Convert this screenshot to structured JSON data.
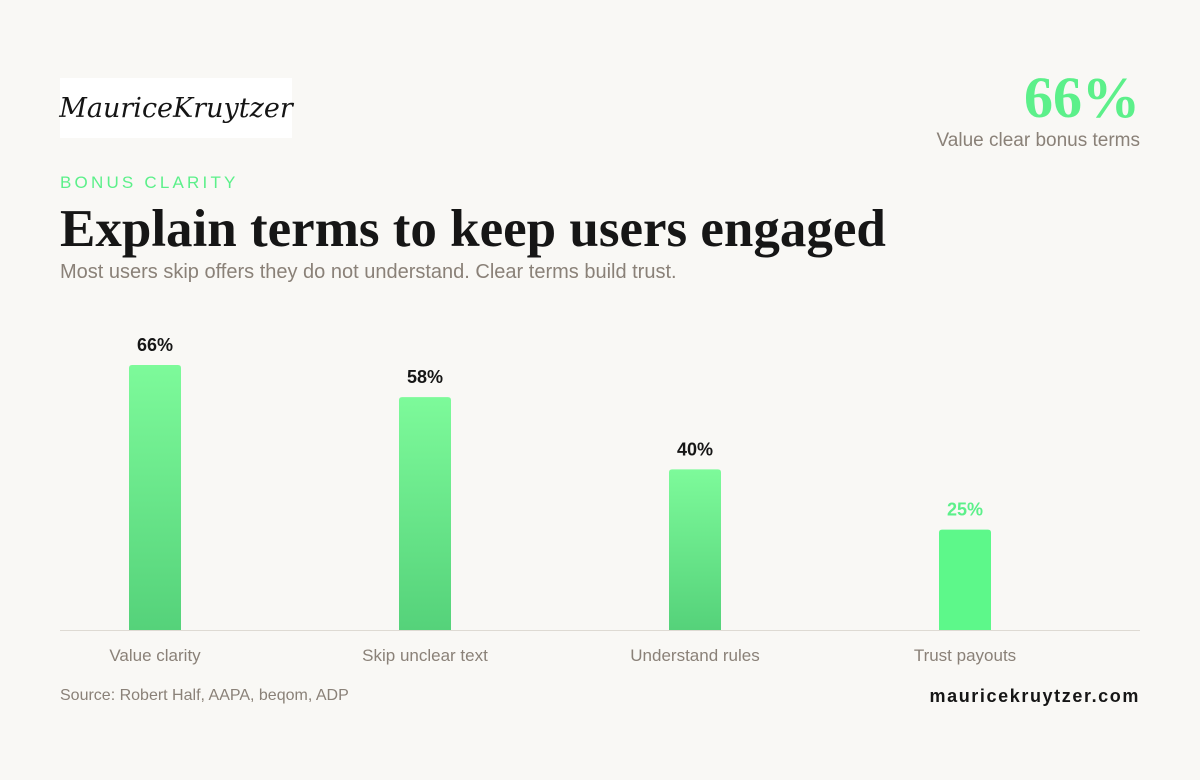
{
  "brand": {
    "logo_text": "MauriceKruytzer",
    "site": "mauricekruytzer.com"
  },
  "kpi": {
    "value": "66%",
    "label": "Value clear bonus terms"
  },
  "header": {
    "eyebrow": "BONUS CLARITY",
    "title": "Explain terms to keep users engaged",
    "subtitle": "Most users skip offers they do not understand. Clear terms build trust."
  },
  "footer": {
    "source": "Source: Robert Half, AAPA, beqom, ADP"
  },
  "colors": {
    "accent": "#5cf08a",
    "bar_top": "#7dfa9a",
    "bar_bottom": "#55d27a",
    "highlight_bar": "#5df88a",
    "text_dark": "#161616",
    "text_muted": "#8a8178",
    "background": "#f9f8f5"
  },
  "chart_data": {
    "type": "bar",
    "categories": [
      "Value clarity",
      "Skip unclear text",
      "Understand rules",
      "Trust payouts"
    ],
    "values": [
      66,
      58,
      40,
      25
    ],
    "data_labels": [
      "66%",
      "58%",
      "40%",
      "25%"
    ],
    "highlighted_index": 3,
    "ylim": [
      0,
      66
    ],
    "unit": "%",
    "grid": false,
    "legend": "none"
  }
}
